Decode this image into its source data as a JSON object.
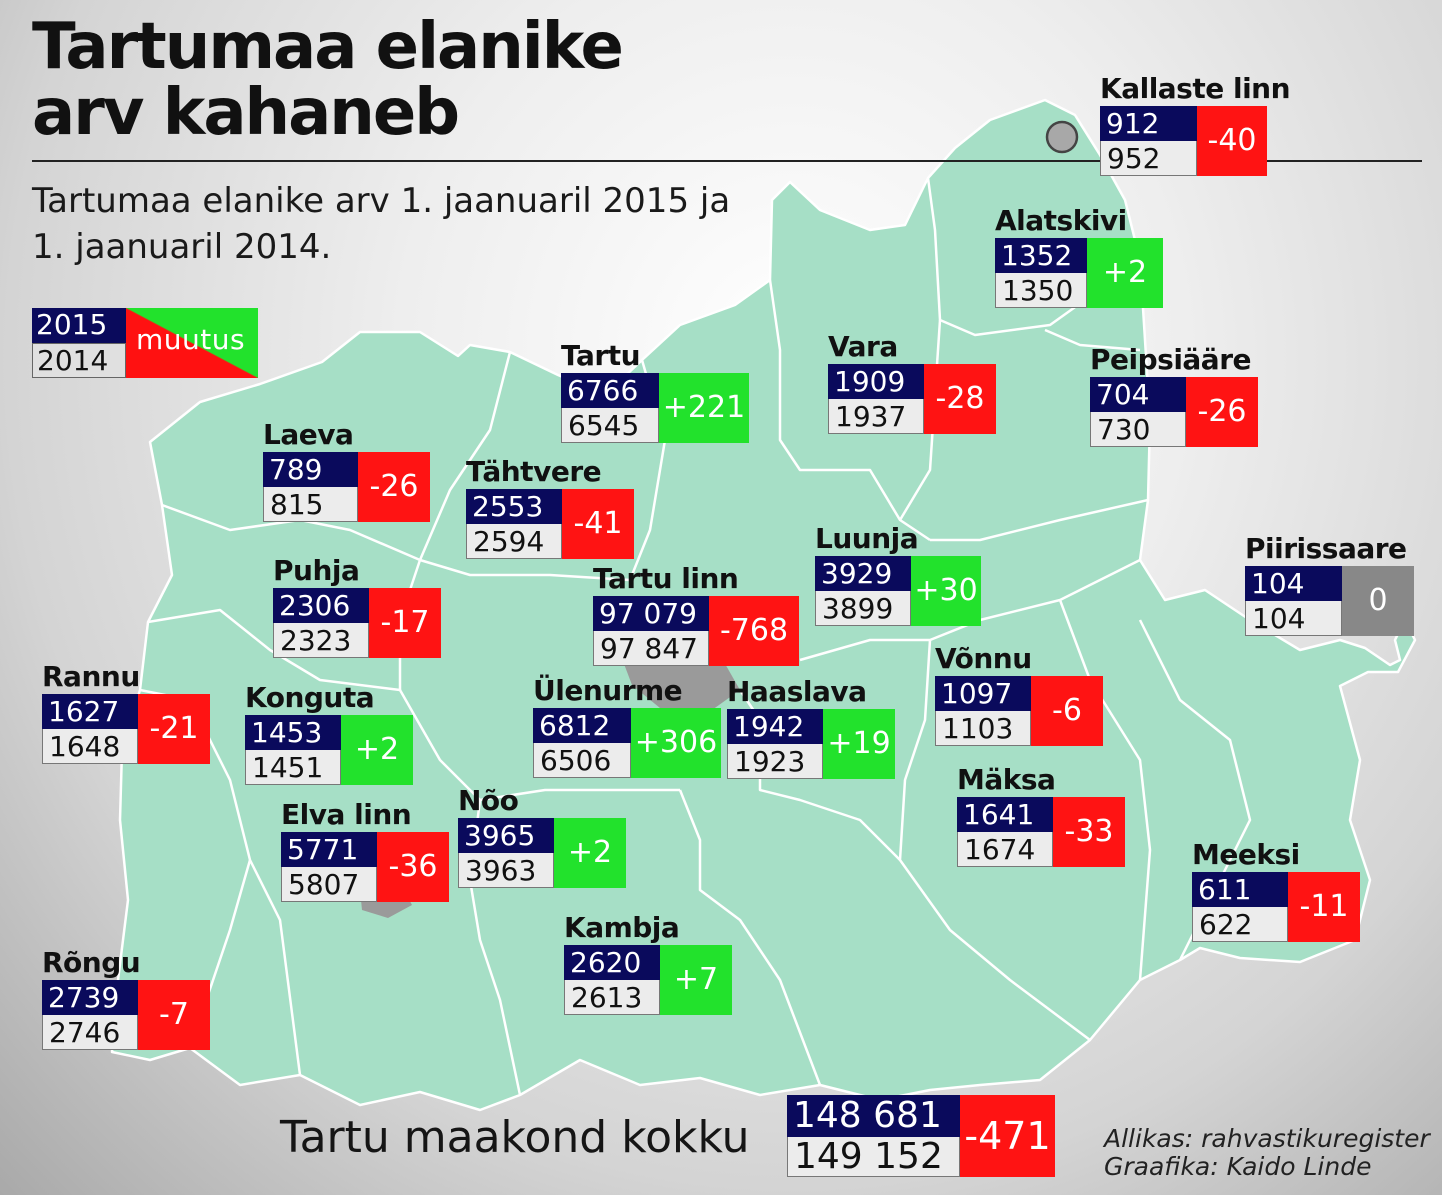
{
  "title": "Tartumaa elanike\narv kahaneb",
  "subtitle": "Tartumaa elanike arv 1. jaanuaril 2015 ja 1. jaanuaril 2014.",
  "legend": {
    "year_2015": "2015",
    "year_2014": "2014",
    "change": "muutus"
  },
  "colors": {
    "map_fill": "#a6dfc6",
    "map_border": "#ffffff",
    "city_fill": "#9a9a9a",
    "value_2015_bg": "#0a0a5c",
    "value_2014_bg": "#ececec",
    "decrease": "#ff1313",
    "increase": "#22e22c",
    "unchanged": "#888888"
  },
  "regions": [
    {
      "name": "Kallaste linn",
      "v2015": "912",
      "v2014": "952",
      "change": "-40",
      "sign": "neg"
    },
    {
      "name": "Alatskivi",
      "v2015": "1352",
      "v2014": "1350",
      "change": "+2",
      "sign": "pos"
    },
    {
      "name": "Vara",
      "v2015": "1909",
      "v2014": "1937",
      "change": "-28",
      "sign": "neg"
    },
    {
      "name": "Peipsiääre",
      "v2015": "704",
      "v2014": "730",
      "change": "-26",
      "sign": "neg"
    },
    {
      "name": "Tartu",
      "v2015": "6766",
      "v2014": "6545",
      "change": "+221",
      "sign": "pos"
    },
    {
      "name": "Laeva",
      "v2015": "789",
      "v2014": "815",
      "change": "-26",
      "sign": "neg"
    },
    {
      "name": "Tähtvere",
      "v2015": "2553",
      "v2014": "2594",
      "change": "-41",
      "sign": "neg"
    },
    {
      "name": "Luunja",
      "v2015": "3929",
      "v2014": "3899",
      "change": "+30",
      "sign": "pos"
    },
    {
      "name": "Piirissaare",
      "v2015": "104",
      "v2014": "104",
      "change": "0",
      "sign": "zero"
    },
    {
      "name": "Puhja",
      "v2015": "2306",
      "v2014": "2323",
      "change": "-17",
      "sign": "neg"
    },
    {
      "name": "Tartu linn",
      "v2015": "97 079",
      "v2014": "97 847",
      "change": "-768",
      "sign": "neg"
    },
    {
      "name": "Rannu",
      "v2015": "1627",
      "v2014": "1648",
      "change": "-21",
      "sign": "neg"
    },
    {
      "name": "Võnnu",
      "v2015": "1097",
      "v2014": "1103",
      "change": "-6",
      "sign": "neg"
    },
    {
      "name": "Konguta",
      "v2015": "1453",
      "v2014": "1451",
      "change": "+2",
      "sign": "pos"
    },
    {
      "name": "Ülenurme",
      "v2015": "6812",
      "v2014": "6506",
      "change": "+306",
      "sign": "pos"
    },
    {
      "name": "Haaslava",
      "v2015": "1942",
      "v2014": "1923",
      "change": "+19",
      "sign": "pos"
    },
    {
      "name": "Mäksa",
      "v2015": "1641",
      "v2014": "1674",
      "change": "-33",
      "sign": "neg"
    },
    {
      "name": "Elva linn",
      "v2015": "5771",
      "v2014": "5807",
      "change": "-36",
      "sign": "neg"
    },
    {
      "name": "Nõo",
      "v2015": "3965",
      "v2014": "3963",
      "change": "+2",
      "sign": "pos"
    },
    {
      "name": "Meeksi",
      "v2015": "611",
      "v2014": "622",
      "change": "-11",
      "sign": "neg"
    },
    {
      "name": "Kambja",
      "v2015": "2620",
      "v2014": "2613",
      "change": "+7",
      "sign": "pos"
    },
    {
      "name": "Rõngu",
      "v2015": "2739",
      "v2014": "2746",
      "change": "-7",
      "sign": "neg"
    }
  ],
  "total": {
    "label": "Tartu maakond kokku",
    "v2015": "148 681",
    "v2014": "149 152",
    "change": "-471"
  },
  "credits": {
    "source": "Allikas: rahvastikuregister",
    "graphics": "Graafika: Kaido Linde"
  }
}
